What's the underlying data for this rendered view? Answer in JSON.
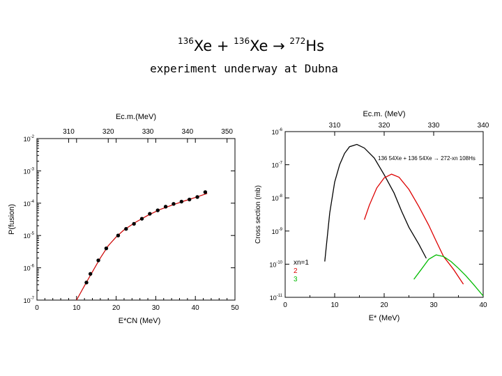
{
  "slide": {
    "title_parts": {
      "mass1": "136",
      "el1": "Xe",
      "plus": " + ",
      "mass2": "136",
      "el2": "Xe",
      "arrow": " → ",
      "mass3": "272",
      "el3": "Hs"
    },
    "subtitle": "experiment underway at Dubna"
  },
  "chart_data": [
    {
      "type": "scatter",
      "title": "",
      "xlabel": "E*CN (MeV)",
      "ylabel": "P(fusion)",
      "top_axis_label": "Ec.m.(MeV)",
      "xlim": [
        0,
        50
      ],
      "ylim_log10": [
        -7,
        -2
      ],
      "yscale": "log",
      "x_ticks": [
        "0",
        "10",
        "20",
        "30",
        "40",
        "50"
      ],
      "y_ticks": [
        "10-2",
        "10-3",
        "10-4",
        "10-5",
        "10-6",
        "10-7"
      ],
      "top_ticks": [
        "310",
        "320",
        "330",
        "340",
        "350"
      ],
      "top_tick_x": [
        8,
        18,
        28,
        38,
        48
      ],
      "points": [
        {
          "x": 12.5,
          "y": 3.5e-07
        },
        {
          "x": 13.5,
          "y": 6.5e-07
        },
        {
          "x": 15.5,
          "y": 1.7e-06
        },
        {
          "x": 17.5,
          "y": 4e-06
        },
        {
          "x": 20.5,
          "y": 1e-05
        },
        {
          "x": 22.5,
          "y": 1.6e-05
        },
        {
          "x": 24.5,
          "y": 2.3e-05
        },
        {
          "x": 26.5,
          "y": 3.3e-05
        },
        {
          "x": 28.5,
          "y": 4.7e-05
        },
        {
          "x": 30.5,
          "y": 6e-05
        },
        {
          "x": 32.5,
          "y": 7.8e-05
        },
        {
          "x": 34.5,
          "y": 9.5e-05
        },
        {
          "x": 36.5,
          "y": 0.000112
        },
        {
          "x": 38.5,
          "y": 0.00013
        },
        {
          "x": 40.5,
          "y": 0.000155
        },
        {
          "x": 42.5,
          "y": 0.00022
        }
      ],
      "fit_curve": {
        "color": "#cc0000",
        "points": [
          [
            10,
            1e-07
          ],
          [
            12,
            2.8e-07
          ],
          [
            14,
            7.5e-07
          ],
          [
            16,
            2e-06
          ],
          [
            18,
            4.8e-06
          ],
          [
            20,
            9e-06
          ],
          [
            22,
            1.5e-05
          ],
          [
            25,
            2.6e-05
          ],
          [
            28,
            4.2e-05
          ],
          [
            31,
            6.3e-05
          ],
          [
            34,
            8.6e-05
          ],
          [
            37,
            0.000115
          ],
          [
            40,
            0.00015
          ],
          [
            43,
            0.0002
          ]
        ]
      }
    },
    {
      "type": "line",
      "title": "",
      "xlabel": "E* (MeV)",
      "ylabel": "Cross section (mb)",
      "top_axis_label": "Ec.m. (MeV)",
      "reaction_label": "136 54Xe + 136 54Xe → 272-xn 108Hs",
      "xlim": [
        0,
        40
      ],
      "ylim_log10": [
        -11,
        -6
      ],
      "yscale": "log",
      "x_ticks": [
        "0",
        "10",
        "20",
        "30",
        "40"
      ],
      "y_ticks": [
        "10-6",
        "10-7",
        "10-8",
        "10-9",
        "10-10",
        "10-11"
      ],
      "top_ticks": [
        "310",
        "320",
        "330",
        "340"
      ],
      "top_tick_x": [
        10,
        20,
        30,
        40
      ],
      "legend": [
        {
          "name": "xn=1",
          "color": "#000000"
        },
        {
          "name": "2",
          "color": "#dd0000"
        },
        {
          "name": "3",
          "color": "#00bb00"
        }
      ],
      "series": [
        {
          "name": "xn=1",
          "color": "#000000",
          "points": [
            [
              8,
              1.2e-10
            ],
            [
              9,
              3.5e-09
            ],
            [
              10,
              3e-08
            ],
            [
              11,
              1e-07
            ],
            [
              12,
              2.2e-07
            ],
            [
              13,
              3.5e-07
            ],
            [
              14.5,
              4.1e-07
            ],
            [
              16,
              3.2e-07
            ],
            [
              18,
              1.6e-07
            ],
            [
              20,
              5e-08
            ],
            [
              22,
              1.4e-08
            ],
            [
              23.5,
              4e-09
            ],
            [
              25,
              1.3e-09
            ],
            [
              27,
              4e-10
            ],
            [
              28.5,
              1.5e-10
            ]
          ]
        },
        {
          "name": "2",
          "color": "#dd0000",
          "points": [
            [
              16,
              2.2e-09
            ],
            [
              17,
              6e-09
            ],
            [
              18.5,
              2e-08
            ],
            [
              20,
              4e-08
            ],
            [
              21.5,
              5.2e-08
            ],
            [
              23,
              4.2e-08
            ],
            [
              25,
              1.8e-08
            ],
            [
              27,
              5.5e-09
            ],
            [
              29,
              1.5e-09
            ],
            [
              30.5,
              5e-10
            ],
            [
              32,
              1.7e-10
            ],
            [
              34,
              7e-11
            ],
            [
              36,
              2.5e-11
            ]
          ]
        },
        {
          "name": "3",
          "color": "#00bb00",
          "points": [
            [
              26,
              3.5e-11
            ],
            [
              27.5,
              7e-11
            ],
            [
              29,
              1.4e-10
            ],
            [
              30.5,
              1.9e-10
            ],
            [
              32,
              1.7e-10
            ],
            [
              33.5,
              1.2e-10
            ],
            [
              35,
              7.5e-11
            ],
            [
              36.5,
              4.5e-11
            ],
            [
              38,
              2.5e-11
            ],
            [
              40,
              1.1e-11
            ]
          ]
        }
      ]
    }
  ]
}
